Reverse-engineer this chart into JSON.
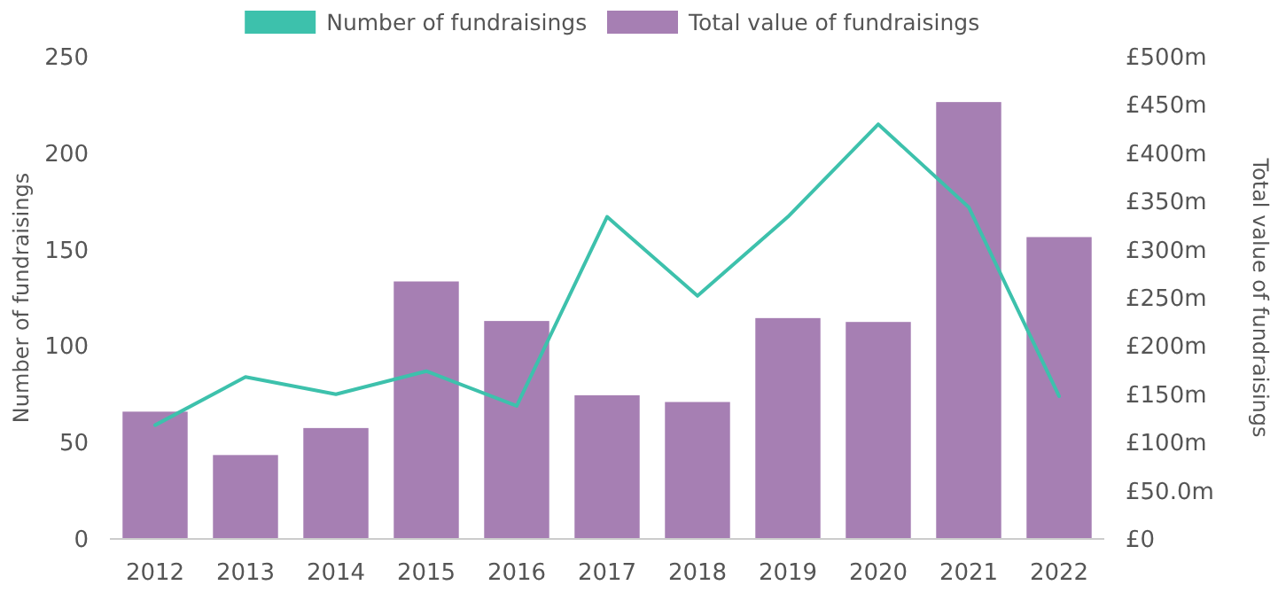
{
  "chart_data": {
    "type": "bar",
    "ylabel": "Number of fundraisings",
    "y2label": "Total value of fundraisings",
    "categories": [
      "2012",
      "2013",
      "2014",
      "2015",
      "2016",
      "2017",
      "2018",
      "2019",
      "2020",
      "2021",
      "2022"
    ],
    "series": [
      {
        "name": "Number of fundraisings",
        "type": "line",
        "color": "#3dc1ac",
        "values": [
          59,
          84,
          75,
          87,
          69,
          167,
          126,
          167,
          215,
          172,
          74
        ]
      },
      {
        "name": "Total value of fundraisings",
        "axis": "y2",
        "color": "#a67fb3",
        "values": [
          132,
          87,
          115,
          267,
          226,
          149,
          142,
          229,
          225,
          453,
          313
        ]
      }
    ],
    "ylim": [
      0,
      250
    ],
    "yticks": [
      0,
      50,
      100,
      150,
      200,
      250
    ],
    "y2lim": [
      0,
      500
    ],
    "y2ticks": [
      {
        "value": 0,
        "label": "£0"
      },
      {
        "value": 50,
        "label": "£50.0m"
      },
      {
        "value": 100,
        "label": "£100m"
      },
      {
        "value": 150,
        "label": "£150m"
      },
      {
        "value": 200,
        "label": "£200m"
      },
      {
        "value": 250,
        "label": "£250m"
      },
      {
        "value": 300,
        "label": "£300m"
      },
      {
        "value": 350,
        "label": "£350m"
      },
      {
        "value": 400,
        "label": "£400m"
      },
      {
        "value": 450,
        "label": "£450m"
      },
      {
        "value": 500,
        "label": "£500m"
      }
    ],
    "legend": "top",
    "grid": false
  }
}
